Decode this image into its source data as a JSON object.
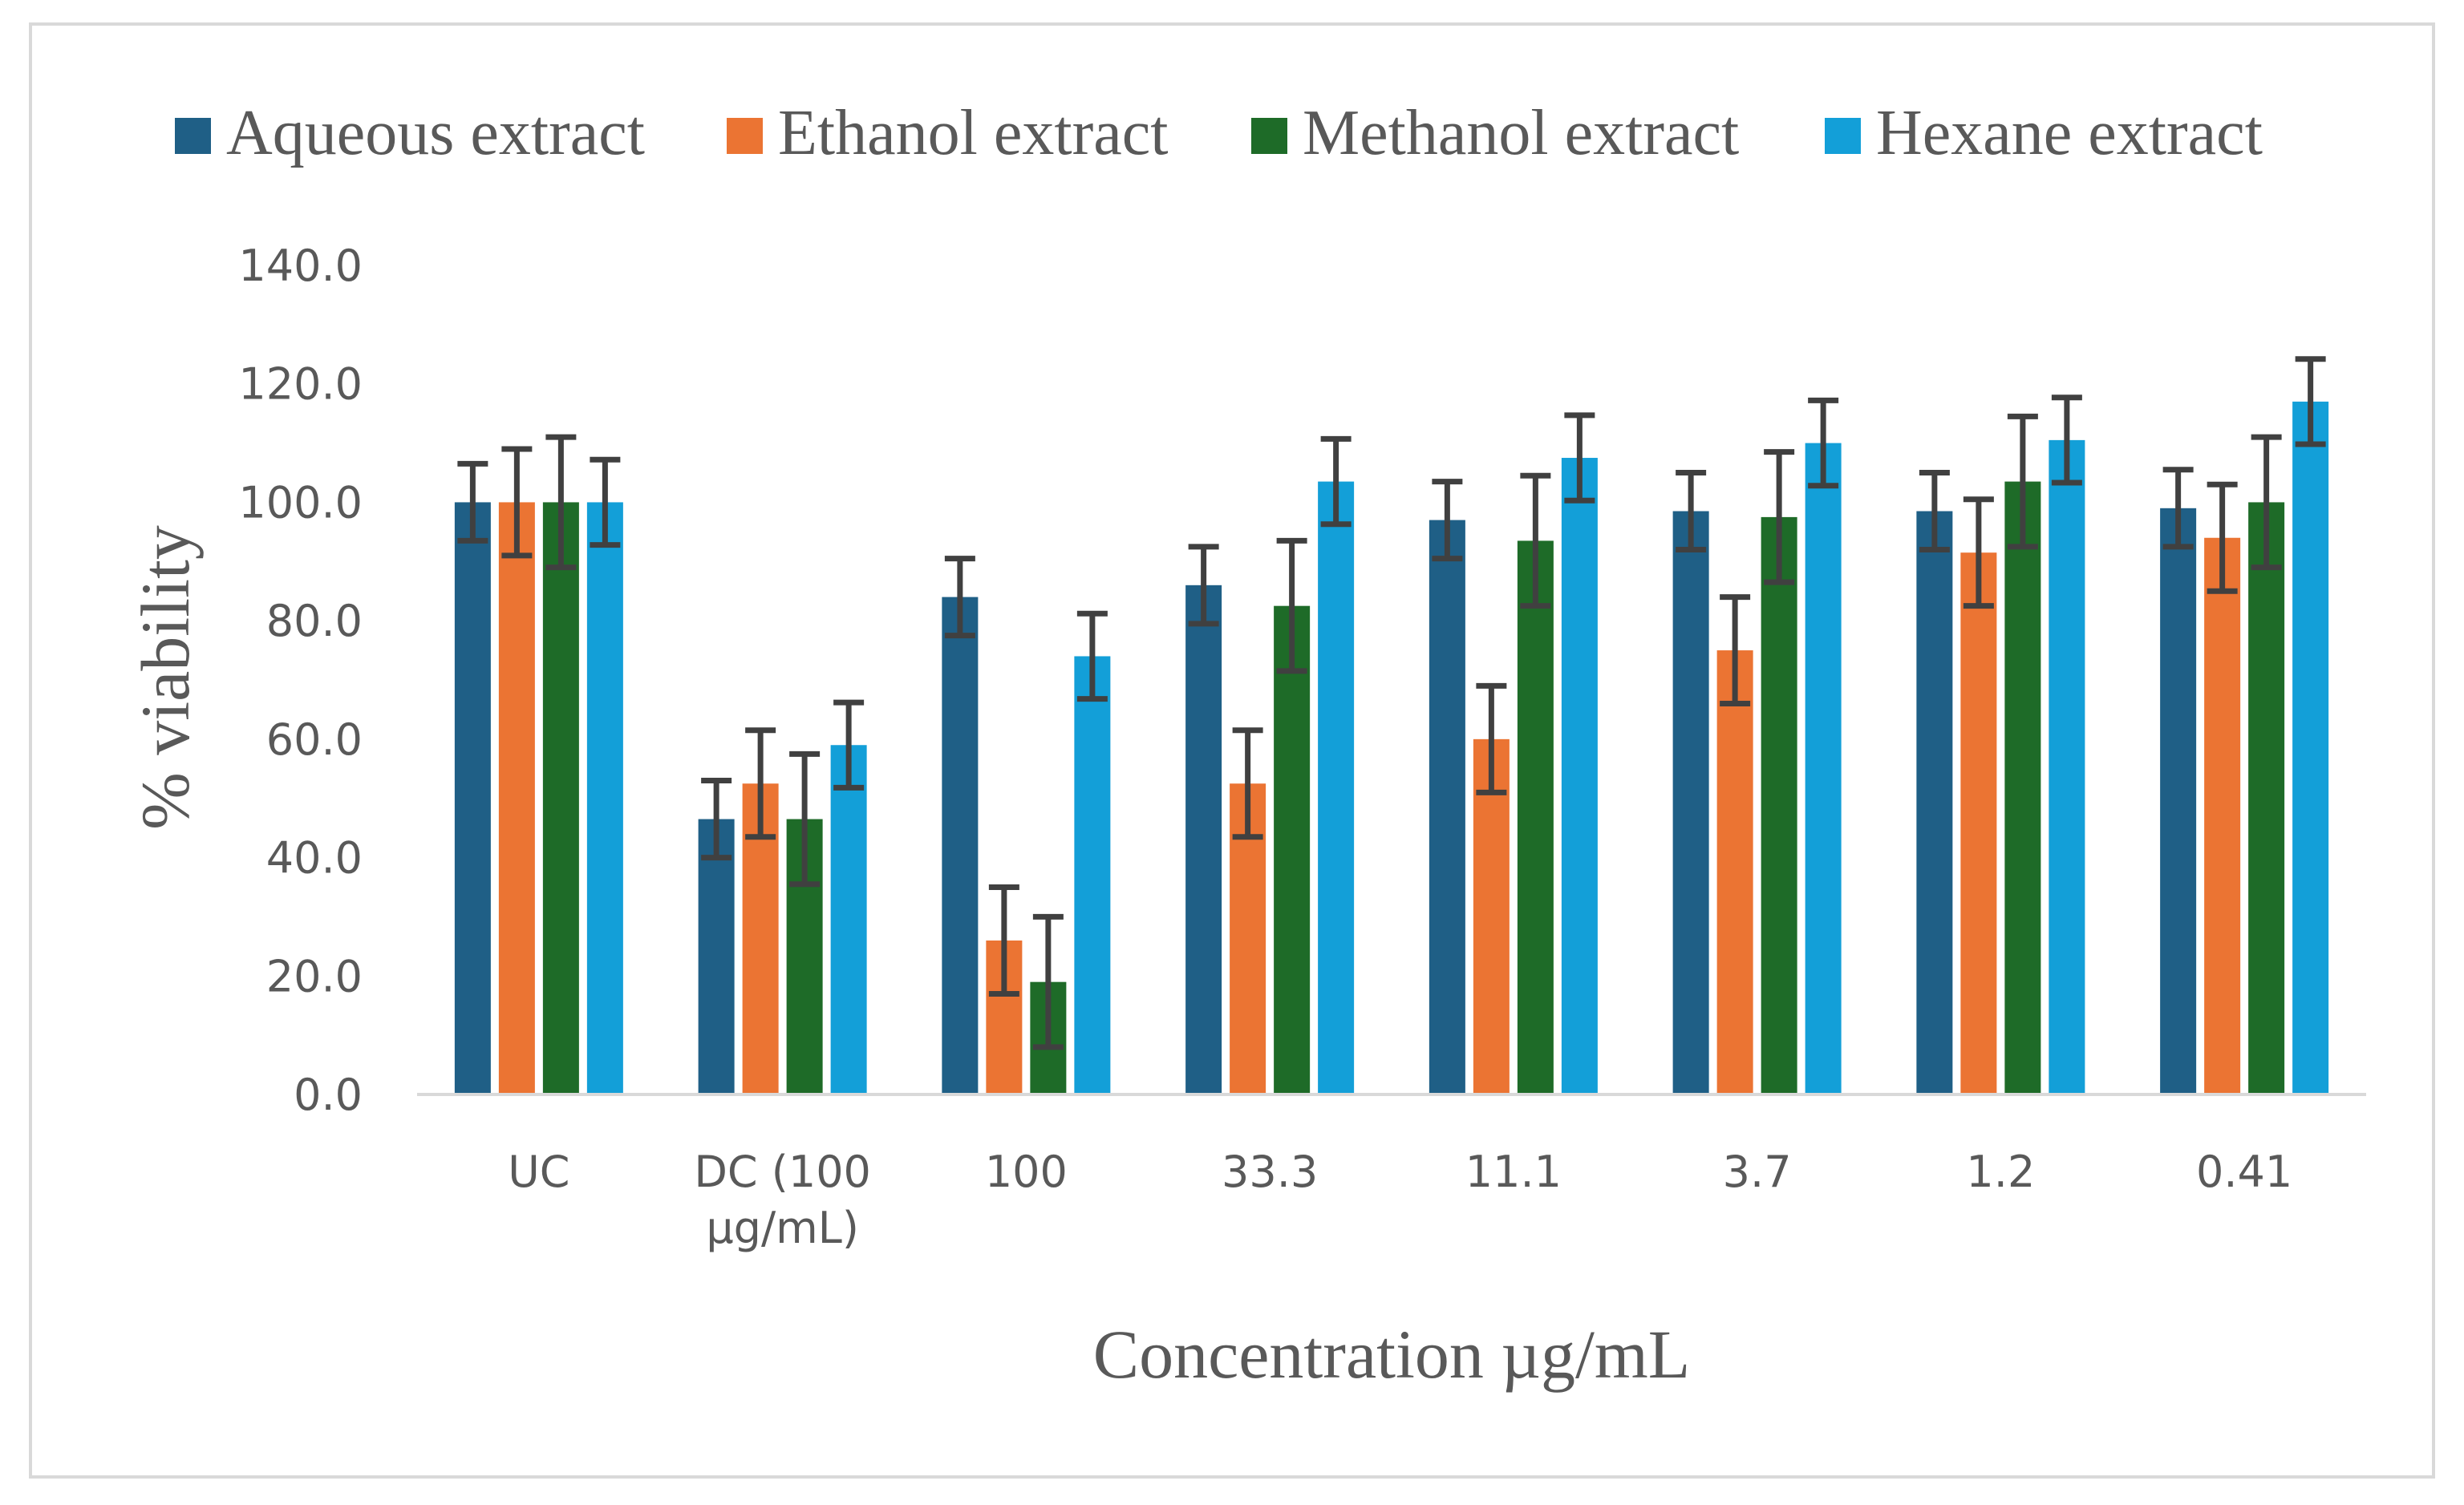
{
  "chart_data": {
    "type": "bar",
    "title": "",
    "xlabel": "Concentration µg/mL",
    "ylabel": "% viability",
    "ylim": [
      0,
      140
    ],
    "yticks": [
      "0.0",
      "20.0",
      "40.0",
      "60.0",
      "80.0",
      "100.0",
      "120.0",
      "140.0"
    ],
    "yticks_values": [
      0,
      20,
      40,
      60,
      80,
      100,
      120,
      140
    ],
    "grid": false,
    "legend_position": "top",
    "categories": [
      [
        "UC"
      ],
      [
        "DC (100",
        "µg/mL)"
      ],
      [
        "100"
      ],
      [
        "33.3"
      ],
      [
        "11.1"
      ],
      [
        "3.7"
      ],
      [
        "1.2"
      ],
      [
        "0.41"
      ]
    ],
    "series": [
      {
        "name": "Aqueous extract",
        "color": "#1f5f86",
        "values": [
          100,
          46.5,
          84,
          86,
          97,
          98.5,
          98.5,
          99
        ],
        "errors": [
          6.5,
          6.5,
          6.5,
          6.5,
          6.5,
          6.5,
          6.5,
          6.5
        ]
      },
      {
        "name": "Ethanol extract",
        "color": "#eb7433",
        "values": [
          100,
          52.5,
          26,
          52.5,
          60,
          75,
          91.5,
          94
        ],
        "errors": [
          9,
          9,
          9,
          9,
          9,
          9,
          9,
          9
        ]
      },
      {
        "name": "Methanol extract",
        "color": "#1e6b28",
        "values": [
          100,
          46.5,
          19,
          82.5,
          93.5,
          97.5,
          103.5,
          100
        ],
        "errors": [
          11,
          11,
          11,
          11,
          11,
          11,
          11,
          11
        ]
      },
      {
        "name": "Hexane extract",
        "color": "#139fd8",
        "values": [
          100,
          59,
          74,
          103.5,
          107.5,
          110,
          110.5,
          117
        ],
        "errors": [
          7.2,
          7.2,
          7.2,
          7.2,
          7.2,
          7.2,
          7.2,
          7.2
        ]
      }
    ]
  }
}
